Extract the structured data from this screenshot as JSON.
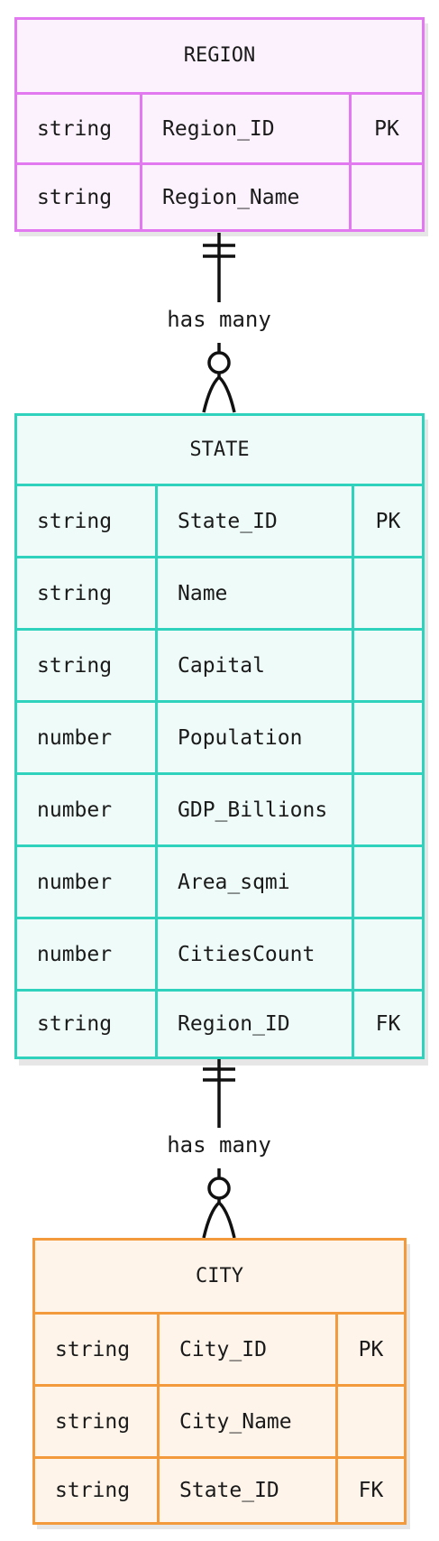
{
  "entities": {
    "region": {
      "title": "REGION",
      "colors": {
        "border": "#e279f0",
        "fill": "#fcf2fd"
      },
      "rows": [
        {
          "type": "string",
          "name": "Region_ID",
          "key": "PK"
        },
        {
          "type": "string",
          "name": "Region_Name",
          "key": ""
        }
      ]
    },
    "state": {
      "title": "STATE",
      "colors": {
        "border": "#2fd3bd",
        "fill": "#eefbf8"
      },
      "rows": [
        {
          "type": "string",
          "name": "State_ID",
          "key": "PK"
        },
        {
          "type": "string",
          "name": "Name",
          "key": ""
        },
        {
          "type": "string",
          "name": "Capital",
          "key": ""
        },
        {
          "type": "number",
          "name": "Population",
          "key": ""
        },
        {
          "type": "number",
          "name": "GDP_Billions",
          "key": ""
        },
        {
          "type": "number",
          "name": "Area_sqmi",
          "key": ""
        },
        {
          "type": "number",
          "name": "CitiesCount",
          "key": ""
        },
        {
          "type": "string",
          "name": "Region_ID",
          "key": "FK"
        }
      ]
    },
    "city": {
      "title": "CITY",
      "colors": {
        "border": "#f29a3c",
        "fill": "#fef4ea"
      },
      "rows": [
        {
          "type": "string",
          "name": "City_ID",
          "key": "PK"
        },
        {
          "type": "string",
          "name": "City_Name",
          "key": ""
        },
        {
          "type": "string",
          "name": "State_ID",
          "key": "FK"
        }
      ]
    }
  },
  "relationships": [
    {
      "label": "has many"
    },
    {
      "label": "has many"
    }
  ]
}
